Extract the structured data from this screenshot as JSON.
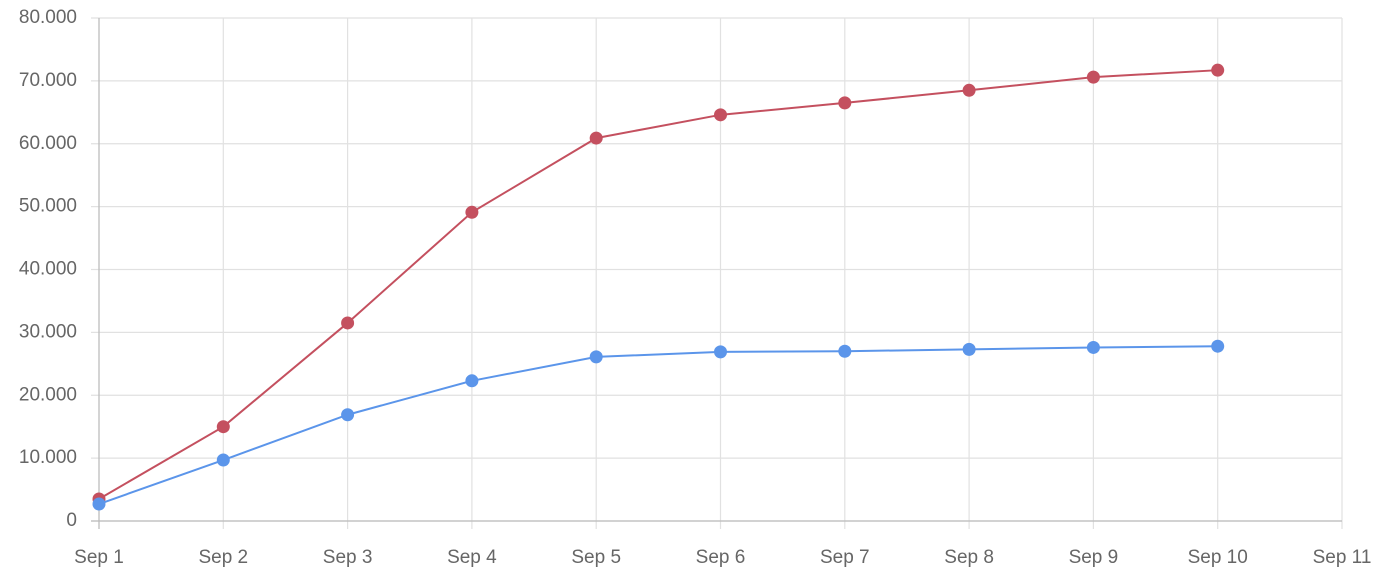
{
  "chart_data": {
    "type": "line",
    "categories": [
      "Sep 1",
      "Sep 2",
      "Sep 3",
      "Sep 4",
      "Sep 5",
      "Sep 6",
      "Sep 7",
      "Sep 8",
      "Sep 9",
      "Sep 10",
      "Sep 11"
    ],
    "series": [
      {
        "color": "#c4505f",
        "values": [
          3500,
          15000,
          31500,
          49100,
          60900,
          64600,
          66500,
          68500,
          70600,
          71700,
          null
        ]
      },
      {
        "color": "#5b95ea",
        "values": [
          2700,
          9700,
          16900,
          22300,
          26100,
          26900,
          27000,
          27300,
          27600,
          27800,
          null
        ]
      }
    ],
    "ylim": [
      0,
      80000
    ],
    "yticks": [
      0,
      {
        "value": 10000,
        "label": "10.000"
      },
      {
        "value": 20000,
        "label": "20.000"
      },
      {
        "value": 30000,
        "label": "30.000"
      },
      {
        "value": 40000,
        "label": "40.000"
      },
      {
        "value": 50000,
        "label": "50.000"
      },
      {
        "value": 60000,
        "label": "60.000"
      },
      {
        "value": 70000,
        "label": "70.000"
      },
      {
        "value": 80000,
        "label": "80.000"
      }
    ],
    "grid": true
  }
}
